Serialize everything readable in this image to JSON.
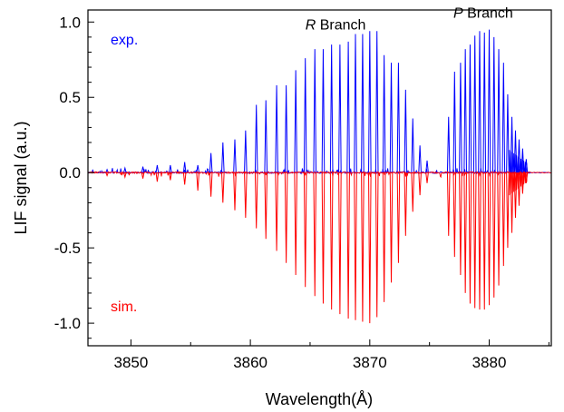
{
  "chart_data": {
    "type": "line",
    "xlabel": "Wavelength(Å)",
    "ylabel": "LIF signal (a.u.)",
    "xlim": [
      3846.4,
      3885.2
    ],
    "ylim": [
      -1.15,
      1.08
    ],
    "xticks": [
      3850,
      3860,
      3870,
      3880
    ],
    "yticks": [
      1.0,
      0.5,
      0.0,
      -0.5,
      -1.0
    ],
    "ytick_labels": [
      "1.0",
      "0.5",
      "0.0",
      "-0.5",
      "-1.0"
    ],
    "grid": false,
    "annotations": [
      {
        "text": "exp.",
        "color": "#0000ff",
        "x": 3848.3,
        "y": 0.85
      },
      {
        "text": "sim.",
        "color": "#ff0000",
        "x": 3848.3,
        "y": -0.92
      }
    ],
    "branch_labels": [
      {
        "italic": "R",
        "text": " Branch",
        "x": 3864.6,
        "y": 0.95
      },
      {
        "italic": "P",
        "text": " Branch",
        "x": 3877.0,
        "y": 1.03
      }
    ],
    "series": [
      {
        "name": "exp.",
        "color": "#0000ff",
        "peaks": [
          [
            3848.0,
            0.02
          ],
          [
            3849.5,
            0.03
          ],
          [
            3851.0,
            0.04
          ],
          [
            3852.2,
            0.05
          ],
          [
            3853.3,
            0.05
          ],
          [
            3854.5,
            0.07
          ],
          [
            3855.6,
            0.05
          ],
          [
            3856.7,
            0.13
          ],
          [
            3857.7,
            0.2
          ],
          [
            3858.7,
            0.22
          ],
          [
            3859.6,
            0.28
          ],
          [
            3860.5,
            0.45
          ],
          [
            3861.3,
            0.48
          ],
          [
            3862.2,
            0.58
          ],
          [
            3863.0,
            0.58
          ],
          [
            3863.8,
            0.68
          ],
          [
            3864.6,
            0.76
          ],
          [
            3865.4,
            0.82
          ],
          [
            3866.1,
            0.82
          ],
          [
            3866.8,
            0.85
          ],
          [
            3867.5,
            0.85
          ],
          [
            3868.2,
            0.87
          ],
          [
            3868.8,
            0.92
          ],
          [
            3869.4,
            0.92
          ],
          [
            3870.0,
            0.94
          ],
          [
            3870.6,
            0.94
          ],
          [
            3871.2,
            0.78
          ],
          [
            3871.8,
            0.73
          ],
          [
            3872.4,
            0.73
          ],
          [
            3873.0,
            0.55
          ],
          [
            3873.6,
            0.36
          ],
          [
            3874.2,
            0.18
          ],
          [
            3874.8,
            0.08
          ],
          [
            3876.6,
            0.37
          ],
          [
            3877.1,
            0.67
          ],
          [
            3877.6,
            0.73
          ],
          [
            3878.0,
            0.82
          ],
          [
            3878.4,
            0.85
          ],
          [
            3878.8,
            0.91
          ],
          [
            3879.2,
            0.94
          ],
          [
            3879.6,
            0.93
          ],
          [
            3880.0,
            0.95
          ],
          [
            3880.4,
            0.9
          ],
          [
            3880.8,
            0.82
          ],
          [
            3881.2,
            0.73
          ],
          [
            3881.55,
            0.52
          ],
          [
            3881.9,
            0.37
          ],
          [
            3882.2,
            0.28
          ],
          [
            3882.5,
            0.22
          ],
          [
            3882.8,
            0.16
          ],
          [
            3883.1,
            0.09
          ]
        ]
      },
      {
        "name": "sim.",
        "color": "#ff0000",
        "peaks": [
          [
            3848.0,
            -0.02
          ],
          [
            3849.5,
            -0.03
          ],
          [
            3851.0,
            -0.04
          ],
          [
            3852.2,
            -0.06
          ],
          [
            3853.3,
            -0.05
          ],
          [
            3854.5,
            -0.08
          ],
          [
            3855.6,
            -0.12
          ],
          [
            3856.7,
            -0.16
          ],
          [
            3857.7,
            -0.2
          ],
          [
            3858.7,
            -0.25
          ],
          [
            3859.6,
            -0.3
          ],
          [
            3860.5,
            -0.37
          ],
          [
            3861.3,
            -0.44
          ],
          [
            3862.2,
            -0.52
          ],
          [
            3863.0,
            -0.6
          ],
          [
            3863.8,
            -0.68
          ],
          [
            3864.6,
            -0.76
          ],
          [
            3865.4,
            -0.82
          ],
          [
            3866.1,
            -0.87
          ],
          [
            3866.8,
            -0.91
          ],
          [
            3867.5,
            -0.94
          ],
          [
            3868.2,
            -0.97
          ],
          [
            3868.8,
            -0.98
          ],
          [
            3869.4,
            -0.99
          ],
          [
            3870.0,
            -1.0
          ],
          [
            3870.6,
            -0.96
          ],
          [
            3871.2,
            -0.86
          ],
          [
            3871.8,
            -0.73
          ],
          [
            3872.4,
            -0.6
          ],
          [
            3873.0,
            -0.42
          ],
          [
            3873.6,
            -0.26
          ],
          [
            3874.2,
            -0.15
          ],
          [
            3874.8,
            -0.07
          ],
          [
            3876.6,
            -0.42
          ],
          [
            3877.1,
            -0.56
          ],
          [
            3877.6,
            -0.68
          ],
          [
            3878.0,
            -0.8
          ],
          [
            3878.4,
            -0.87
          ],
          [
            3878.8,
            -0.9
          ],
          [
            3879.2,
            -0.91
          ],
          [
            3879.6,
            -0.91
          ],
          [
            3880.0,
            -0.88
          ],
          [
            3880.4,
            -0.83
          ],
          [
            3880.8,
            -0.75
          ],
          [
            3881.2,
            -0.62
          ],
          [
            3881.55,
            -0.5
          ],
          [
            3881.9,
            -0.4
          ],
          [
            3882.2,
            -0.3
          ],
          [
            3882.5,
            -0.22
          ],
          [
            3882.8,
            -0.14
          ],
          [
            3883.1,
            -0.07
          ]
        ]
      }
    ]
  }
}
